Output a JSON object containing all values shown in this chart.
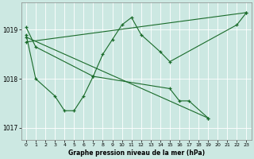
{
  "bg_color": "#cce8e2",
  "grid_color": "#ffffff",
  "line_color": "#1a6b2a",
  "ylim": [
    1016.75,
    1019.55
  ],
  "xlim": [
    -0.5,
    23.5
  ],
  "yticks": [
    1017,
    1018,
    1019
  ],
  "xticks": [
    0,
    1,
    2,
    3,
    4,
    5,
    6,
    7,
    8,
    9,
    10,
    11,
    12,
    13,
    14,
    15,
    16,
    17,
    18,
    19,
    20,
    21,
    22,
    23
  ],
  "xlabel": "Graphe pression niveau de la mer (hPa)",
  "series": [
    {
      "x": [
        0,
        1,
        7,
        8,
        9,
        10,
        11,
        12,
        14,
        15,
        22,
        23
      ],
      "y": [
        1019.05,
        1018.65,
        1018.05,
        1018.5,
        1018.8,
        1019.1,
        1019.25,
        1018.9,
        1018.55,
        1018.35,
        1019.1,
        1019.35
      ]
    },
    {
      "x": [
        0,
        1,
        3,
        4,
        5,
        6,
        7,
        15,
        16,
        17,
        19
      ],
      "y": [
        1018.9,
        1018.0,
        1017.65,
        1017.35,
        1017.35,
        1017.65,
        1018.05,
        1017.8,
        1017.55,
        1017.55,
        1017.2
      ]
    },
    {
      "x": [
        0,
        23
      ],
      "y": [
        1018.75,
        1019.35
      ]
    },
    {
      "x": [
        0,
        19
      ],
      "y": [
        1018.85,
        1017.2
      ]
    }
  ]
}
